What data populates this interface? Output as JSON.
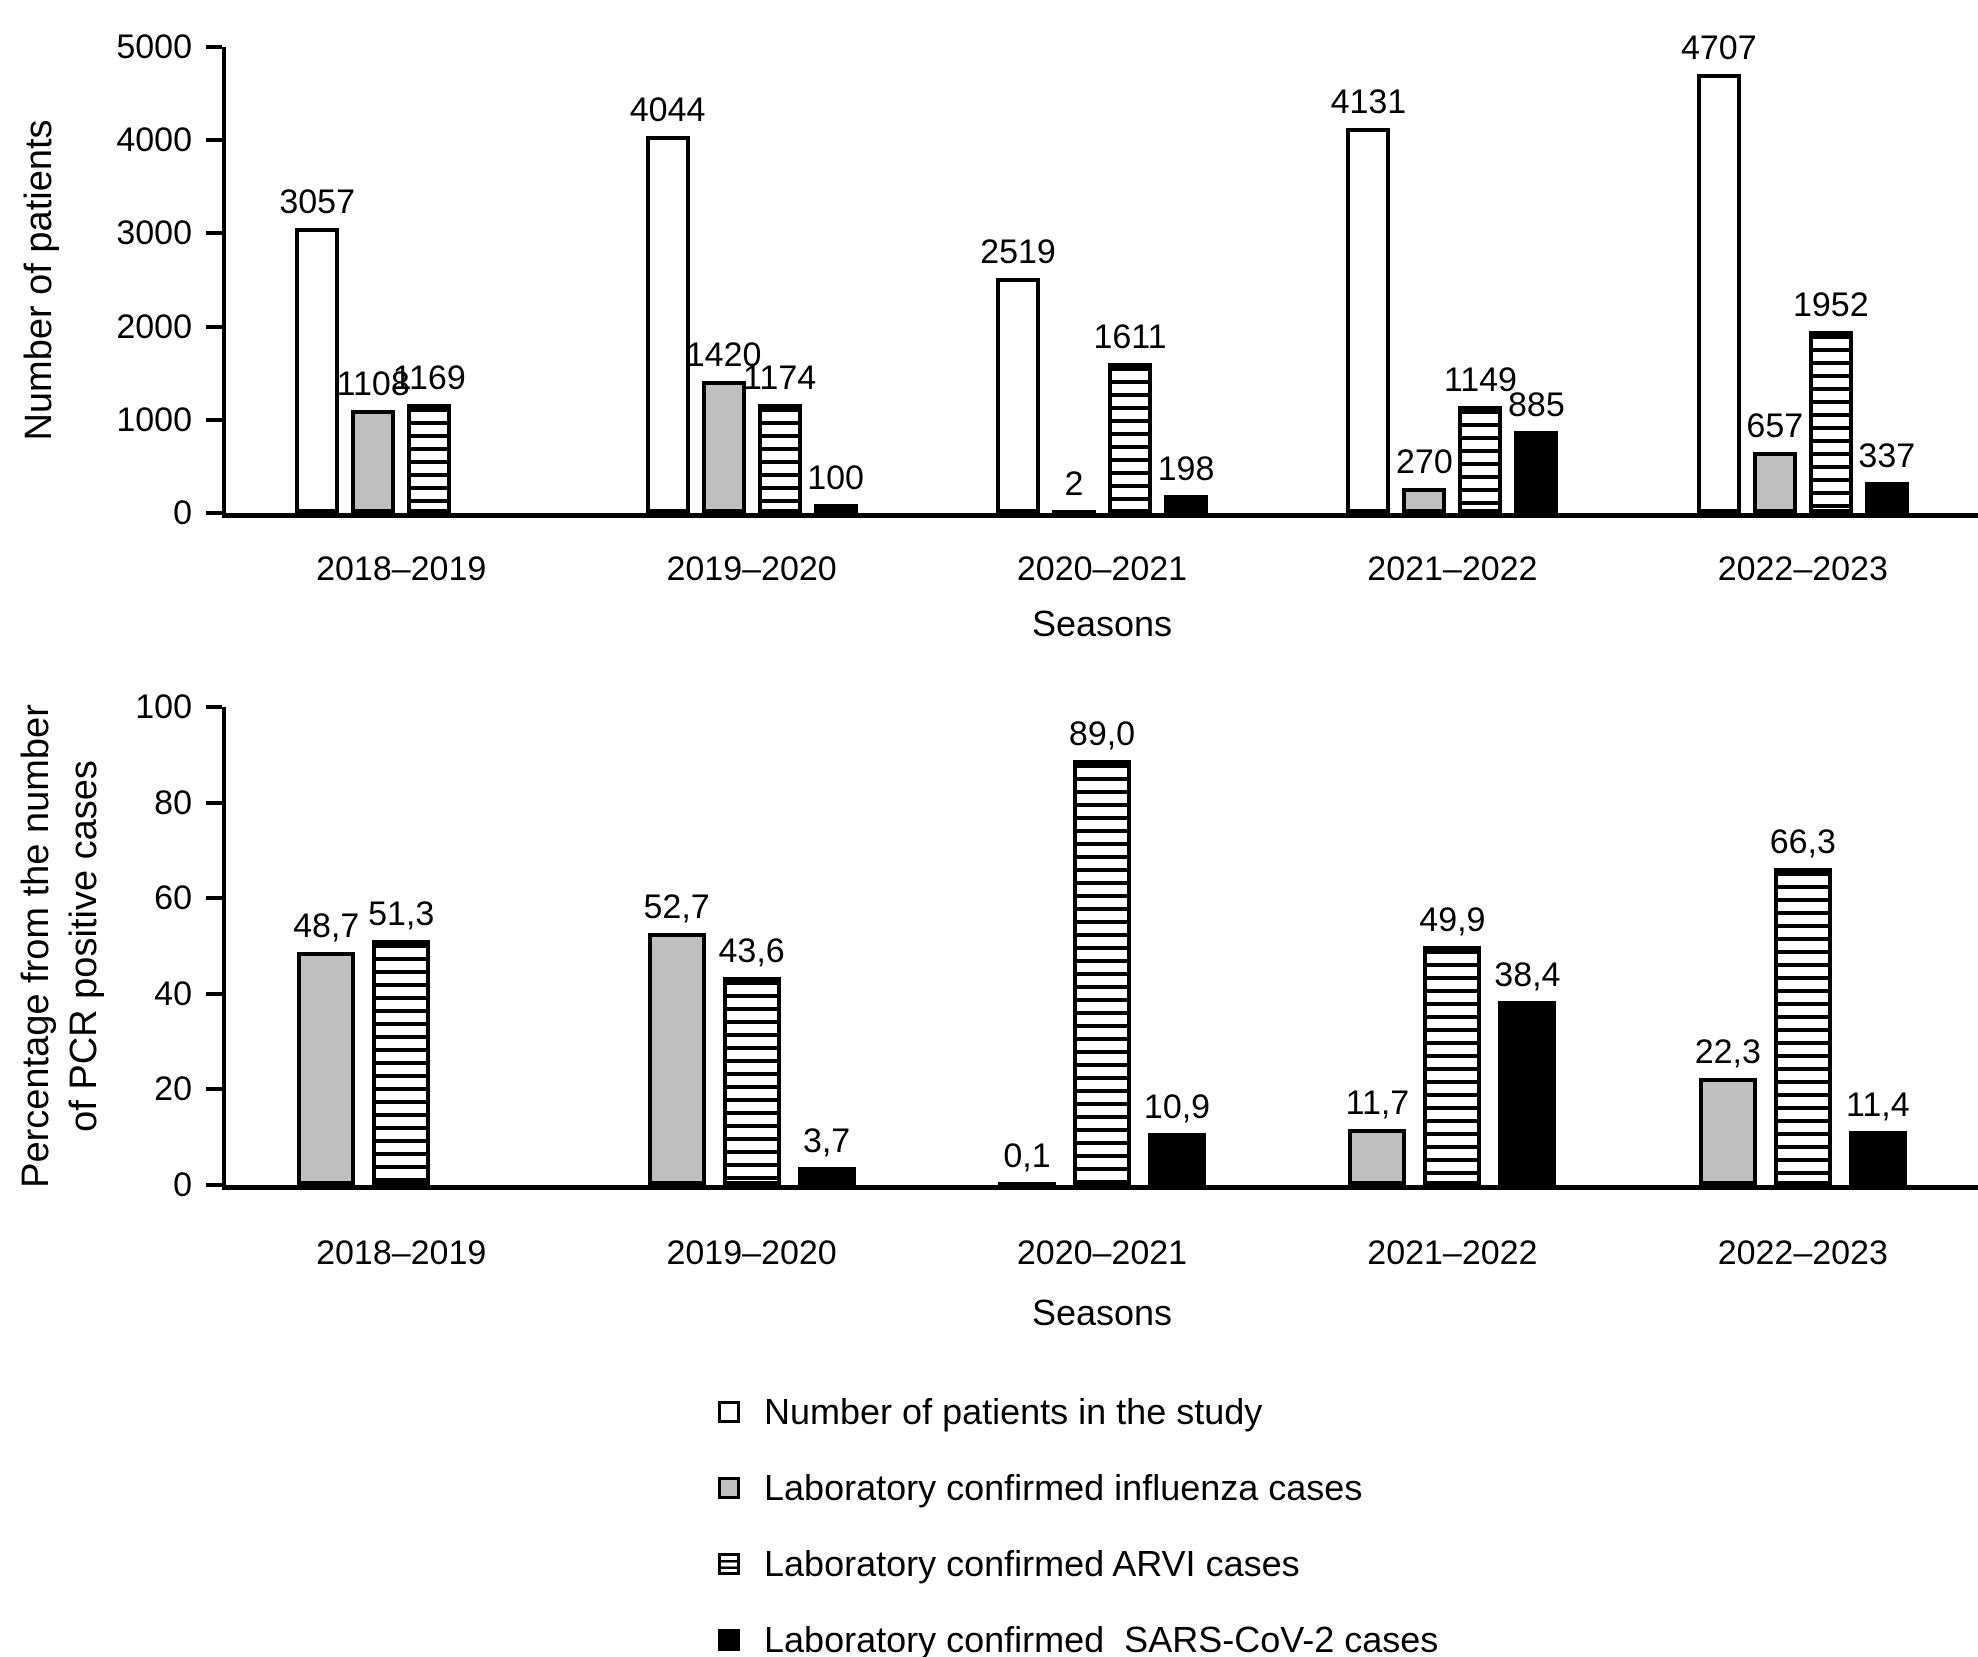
{
  "figure": {
    "background": "#ffffff"
  },
  "colors": {
    "bar_border": "#000000",
    "white_fill": "#ffffff",
    "gray_fill": "#bfbfbf",
    "black_fill": "#000000"
  },
  "chart_data": [
    {
      "type": "bar",
      "ylabel": "Number of patients",
      "xlabel": "Seasons",
      "ylim": [
        0,
        5000
      ],
      "yticks": [
        "0",
        "1000",
        "2000",
        "3000",
        "4000",
        "5000"
      ],
      "grid": false,
      "legend_position": "bottom",
      "categories": [
        "2018–2019",
        "2019–2020",
        "2020–2021",
        "2021–2022",
        "2022–2023"
      ],
      "series": [
        {
          "name": "Number of patients in the study",
          "style": "white",
          "values": [
            3057,
            4044,
            2519,
            4131,
            4707
          ],
          "labels": [
            "3057",
            "4044",
            "2519",
            "4131",
            "4707"
          ]
        },
        {
          "name": "Laboratory confirmed influenza cases",
          "style": "gray",
          "values": [
            1108,
            1420,
            2,
            270,
            657
          ],
          "labels": [
            "1108",
            "1420",
            "2",
            "270",
            "657"
          ]
        },
        {
          "name": "Laboratory confirmed ARVI cases",
          "style": "striped",
          "values": [
            1169,
            1174,
            1611,
            1149,
            1952
          ],
          "labels": [
            "1169",
            "1174",
            "1611",
            "1149",
            "1952"
          ]
        },
        {
          "name": "Laboratory confirmed SARS-CoV-2 cases",
          "style": "black",
          "values": [
            null,
            100,
            198,
            885,
            337
          ],
          "labels": [
            null,
            "100",
            "198",
            "885",
            "337"
          ]
        }
      ]
    },
    {
      "type": "bar",
      "ylabel": "Percentage from the number\nof PCR positive cases",
      "xlabel": "Seasons",
      "ylim": [
        0,
        100
      ],
      "yticks": [
        "0",
        "20",
        "40",
        "60",
        "80",
        "100"
      ],
      "grid": false,
      "legend_position": "bottom",
      "categories": [
        "2018–2019",
        "2019–2020",
        "2020–2021",
        "2021–2022",
        "2022–2023"
      ],
      "series": [
        {
          "name": "Laboratory confirmed influenza cases",
          "style": "gray",
          "values": [
            48.7,
            52.7,
            0.1,
            11.7,
            22.3
          ],
          "labels": [
            "48,7",
            "52,7",
            "0,1",
            "11,7",
            "22,3"
          ]
        },
        {
          "name": "Laboratory confirmed ARVI cases",
          "style": "striped",
          "values": [
            51.3,
            43.6,
            89.0,
            49.9,
            66.3
          ],
          "labels": [
            "51,3",
            "43,6",
            "89,0",
            "49,9",
            "66,3"
          ]
        },
        {
          "name": "Laboratory confirmed SARS-CoV-2 cases",
          "style": "black",
          "values": [
            null,
            3.7,
            10.9,
            38.4,
            11.4
          ],
          "labels": [
            null,
            "3,7",
            "10,9",
            "38,4",
            "11,4"
          ]
        }
      ]
    }
  ],
  "legend": {
    "items": [
      {
        "label": "Number of patients in the study",
        "style": "white"
      },
      {
        "label": "Laboratory confirmed influenza cases",
        "style": "gray"
      },
      {
        "label": "Laboratory confirmed ARVI cases",
        "style": "striped"
      },
      {
        "label": "Laboratory confirmed  SARS-CoV-2 cases",
        "style": "black"
      }
    ]
  }
}
